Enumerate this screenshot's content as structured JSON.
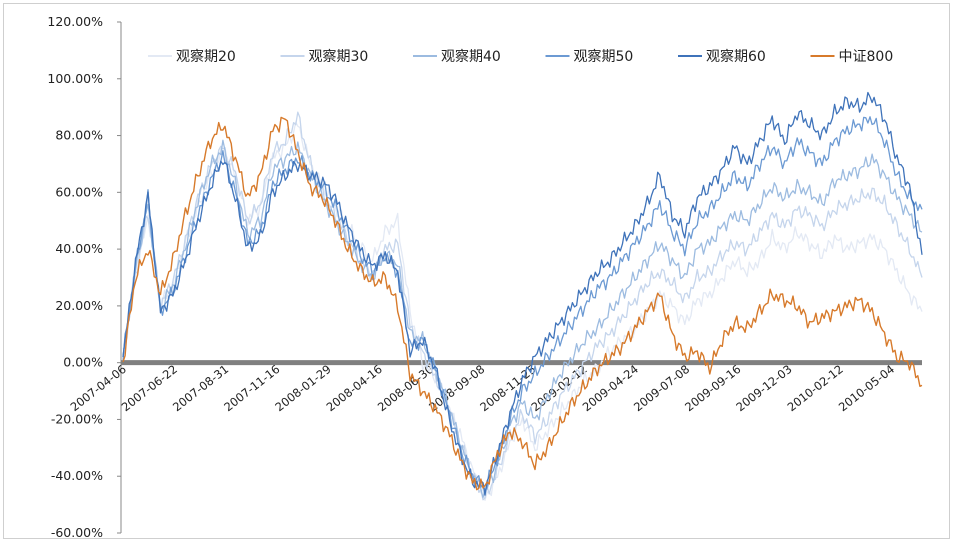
{
  "chart_data": {
    "type": "line",
    "title": "",
    "xlabel": "",
    "ylabel": "",
    "ylim": [
      -0.6,
      1.2
    ],
    "y_ticks": [
      "120.00%",
      "100.00%",
      "80.00%",
      "60.00%",
      "40.00%",
      "20.00%",
      "0.00%",
      "-20.00%",
      "-40.00%",
      "-60.00%"
    ],
    "y_tick_values": [
      1.2,
      1.0,
      0.8,
      0.6,
      0.4,
      0.2,
      0.0,
      -0.2,
      -0.4,
      -0.6
    ],
    "x_ticks": [
      "2007-04-06",
      "2007-06-22",
      "2007-08-31",
      "2007-11-16",
      "2008-01-29",
      "2008-04-16",
      "2008-06-30",
      "2008-09-08",
      "2008-11-25",
      "2009-02-12",
      "2009-04-24",
      "2009-07-08",
      "2009-09-16",
      "2009-12-03",
      "2010-02-12",
      "2010-05-04"
    ],
    "legend_position": "top",
    "grid": false,
    "zero_line_color": "#808080",
    "series": [
      {
        "name": "观察期20",
        "color": "#e3e9f4",
        "values": [
          0.02,
          0.3,
          0.52,
          0.2,
          0.28,
          0.42,
          0.55,
          0.66,
          0.74,
          0.66,
          0.5,
          0.55,
          0.72,
          0.76,
          0.84,
          0.7,
          0.62,
          0.55,
          0.48,
          0.41,
          0.36,
          0.46,
          0.5,
          0.18,
          0.0,
          -0.05,
          -0.15,
          -0.25,
          -0.38,
          -0.48,
          -0.4,
          -0.28,
          -0.2,
          -0.3,
          -0.24,
          -0.18,
          -0.12,
          -0.06,
          -0.02,
          0.04,
          0.08,
          0.12,
          0.18,
          0.24,
          0.2,
          0.14,
          0.22,
          0.24,
          0.3,
          0.36,
          0.32,
          0.36,
          0.44,
          0.4,
          0.46,
          0.42,
          0.38,
          0.44,
          0.4,
          0.42,
          0.44,
          0.4,
          0.32,
          0.24,
          0.18
        ]
      },
      {
        "name": "观察期30",
        "color": "#c5d5ec",
        "values": [
          0.02,
          0.31,
          0.53,
          0.2,
          0.29,
          0.43,
          0.58,
          0.69,
          0.76,
          0.67,
          0.5,
          0.56,
          0.74,
          0.78,
          0.87,
          0.7,
          0.6,
          0.52,
          0.44,
          0.36,
          0.31,
          0.4,
          0.42,
          0.13,
          0.04,
          -0.05,
          -0.15,
          -0.28,
          -0.4,
          -0.48,
          -0.38,
          -0.26,
          -0.18,
          -0.26,
          -0.2,
          -0.12,
          -0.06,
          0.0,
          0.06,
          0.1,
          0.16,
          0.22,
          0.28,
          0.32,
          0.28,
          0.22,
          0.3,
          0.32,
          0.38,
          0.42,
          0.4,
          0.46,
          0.52,
          0.48,
          0.54,
          0.52,
          0.48,
          0.54,
          0.56,
          0.58,
          0.6,
          0.56,
          0.48,
          0.4,
          0.3
        ]
      },
      {
        "name": "观察期40",
        "color": "#9cbbe0",
        "values": [
          0.02,
          0.33,
          0.56,
          0.19,
          0.27,
          0.41,
          0.57,
          0.69,
          0.76,
          0.63,
          0.45,
          0.5,
          0.68,
          0.72,
          0.76,
          0.66,
          0.58,
          0.5,
          0.42,
          0.35,
          0.3,
          0.38,
          0.35,
          0.1,
          0.08,
          -0.02,
          -0.14,
          -0.28,
          -0.4,
          -0.46,
          -0.36,
          -0.22,
          -0.14,
          -0.2,
          -0.12,
          -0.04,
          0.02,
          0.08,
          0.12,
          0.18,
          0.24,
          0.3,
          0.36,
          0.42,
          0.36,
          0.3,
          0.4,
          0.42,
          0.48,
          0.52,
          0.5,
          0.56,
          0.62,
          0.58,
          0.62,
          0.6,
          0.56,
          0.64,
          0.66,
          0.68,
          0.72,
          0.66,
          0.58,
          0.52,
          0.46
        ]
      },
      {
        "name": "观察期50",
        "color": "#6c9ad3",
        "values": [
          0.02,
          0.34,
          0.58,
          0.18,
          0.25,
          0.38,
          0.52,
          0.64,
          0.73,
          0.6,
          0.42,
          0.46,
          0.63,
          0.68,
          0.72,
          0.66,
          0.62,
          0.55,
          0.46,
          0.38,
          0.32,
          0.38,
          0.32,
          0.06,
          0.08,
          -0.02,
          -0.16,
          -0.3,
          -0.4,
          -0.44,
          -0.34,
          -0.2,
          -0.1,
          -0.04,
          0.02,
          0.08,
          0.14,
          0.2,
          0.26,
          0.3,
          0.36,
          0.42,
          0.48,
          0.56,
          0.46,
          0.4,
          0.5,
          0.54,
          0.6,
          0.66,
          0.62,
          0.7,
          0.76,
          0.7,
          0.78,
          0.74,
          0.7,
          0.78,
          0.82,
          0.84,
          0.86,
          0.78,
          0.66,
          0.58,
          0.54
        ]
      },
      {
        "name": "观察期60",
        "color": "#3f73ba",
        "values": [
          0.02,
          0.35,
          0.59,
          0.18,
          0.24,
          0.36,
          0.5,
          0.62,
          0.72,
          0.58,
          0.4,
          0.44,
          0.6,
          0.66,
          0.7,
          0.66,
          0.64,
          0.58,
          0.48,
          0.4,
          0.34,
          0.38,
          0.32,
          0.04,
          0.08,
          -0.02,
          -0.18,
          -0.32,
          -0.42,
          -0.44,
          -0.32,
          -0.18,
          -0.06,
          0.02,
          0.08,
          0.14,
          0.2,
          0.26,
          0.32,
          0.36,
          0.42,
          0.48,
          0.56,
          0.66,
          0.52,
          0.46,
          0.58,
          0.62,
          0.68,
          0.76,
          0.7,
          0.78,
          0.86,
          0.78,
          0.88,
          0.84,
          0.8,
          0.88,
          0.92,
          0.9,
          0.94,
          0.86,
          0.72,
          0.62,
          0.38
        ]
      },
      {
        "name": "中证800",
        "color": "#d77a2b",
        "values": [
          0.0,
          0.3,
          0.4,
          0.24,
          0.36,
          0.52,
          0.66,
          0.78,
          0.84,
          0.72,
          0.58,
          0.66,
          0.82,
          0.86,
          0.74,
          0.62,
          0.58,
          0.5,
          0.4,
          0.33,
          0.28,
          0.3,
          0.2,
          -0.04,
          -0.1,
          -0.16,
          -0.24,
          -0.34,
          -0.42,
          -0.44,
          -0.32,
          -0.24,
          -0.28,
          -0.36,
          -0.3,
          -0.22,
          -0.14,
          -0.08,
          -0.02,
          0.02,
          0.06,
          0.12,
          0.18,
          0.24,
          0.1,
          0.02,
          0.04,
          -0.02,
          0.08,
          0.14,
          0.12,
          0.18,
          0.24,
          0.22,
          0.2,
          0.14,
          0.16,
          0.18,
          0.2,
          0.22,
          0.18,
          0.1,
          0.02,
          0.0,
          -0.08
        ]
      }
    ]
  }
}
